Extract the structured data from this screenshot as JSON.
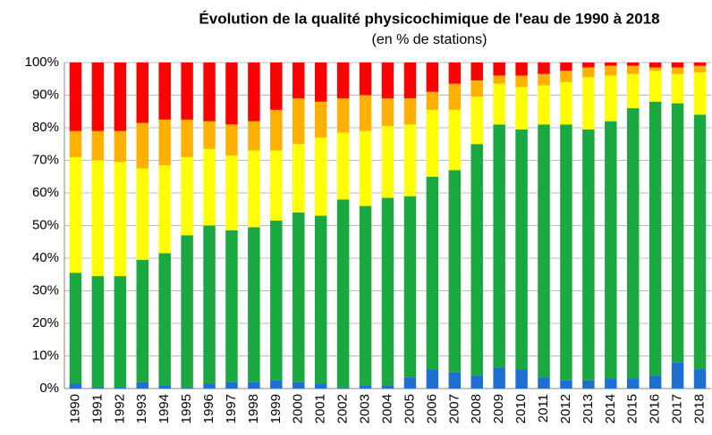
{
  "chart_data": {
    "type": "stacked_bar",
    "title": "Évolution de la qualité physicochimique de l'eau de 1990 à 2018",
    "subtitle": "(en % de stations)",
    "categories": [
      "1990",
      "1991",
      "1992",
      "1993",
      "1994",
      "1995",
      "1996",
      "1997",
      "1998",
      "1999",
      "2000",
      "2001",
      "2002",
      "2003",
      "2004",
      "2005",
      "2006",
      "2007",
      "2008",
      "2009",
      "2010",
      "2011",
      "2012",
      "2013",
      "2014",
      "2015",
      "2016",
      "2017",
      "2018"
    ],
    "series": [
      {
        "color": "#1f6fd1",
        "values": [
          1.5,
          0.5,
          0.5,
          2,
          1,
          0.5,
          1.5,
          2,
          2,
          2.5,
          2,
          1.5,
          0.5,
          1,
          1,
          3.5,
          6,
          5,
          4,
          6.5,
          6,
          3.5,
          2.5,
          2.5,
          3,
          3,
          4,
          8,
          6
        ]
      },
      {
        "color": "#1aa840",
        "values": [
          34,
          34,
          34,
          37.5,
          40.5,
          46.5,
          48.5,
          46.5,
          47.5,
          49,
          52,
          51.5,
          57.5,
          55,
          57.5,
          55.5,
          59,
          62,
          71,
          74.5,
          73.5,
          77.5,
          78.5,
          77,
          79,
          83,
          84,
          79.5,
          78
        ]
      },
      {
        "color": "#ffff00",
        "values": [
          35.5,
          35.5,
          35,
          28,
          27,
          24,
          23.5,
          23,
          23.5,
          21.5,
          21,
          24,
          20.5,
          23,
          22,
          22,
          20.5,
          18.5,
          14.5,
          12.5,
          13,
          12,
          13,
          16,
          14,
          10.5,
          9.5,
          9,
          13
        ]
      },
      {
        "color": "#ffb000",
        "values": [
          8,
          9,
          9.5,
          14,
          14,
          11.5,
          8.5,
          9.5,
          9,
          12.5,
          14,
          11,
          10.5,
          11,
          8.5,
          8,
          5.5,
          8,
          5,
          2.5,
          3.5,
          3.5,
          3.5,
          3,
          3,
          2.5,
          1,
          2,
          2
        ]
      },
      {
        "color": "#ff0000",
        "values": [
          21,
          21,
          21,
          18.5,
          17.5,
          17.5,
          18,
          19,
          18,
          14.5,
          11,
          12,
          11,
          10,
          11,
          11,
          9,
          6.5,
          5.5,
          4,
          4,
          3.5,
          2.5,
          1.5,
          1,
          1,
          1.5,
          1.5,
          1
        ]
      }
    ],
    "ylim": [
      0,
      100
    ],
    "yticks": [
      {
        "value": 0,
        "label": "0%"
      },
      {
        "value": 10,
        "label": "10%"
      },
      {
        "value": 20,
        "label": "20%"
      },
      {
        "value": 30,
        "label": "30%"
      },
      {
        "value": 40,
        "label": "40%"
      },
      {
        "value": 50,
        "label": "50%"
      },
      {
        "value": 60,
        "label": "60%"
      },
      {
        "value": 70,
        "label": "70%"
      },
      {
        "value": 80,
        "label": "80%"
      },
      {
        "value": 90,
        "label": "90%"
      },
      {
        "value": 100,
        "label": "100%"
      }
    ],
    "grid": true
  }
}
